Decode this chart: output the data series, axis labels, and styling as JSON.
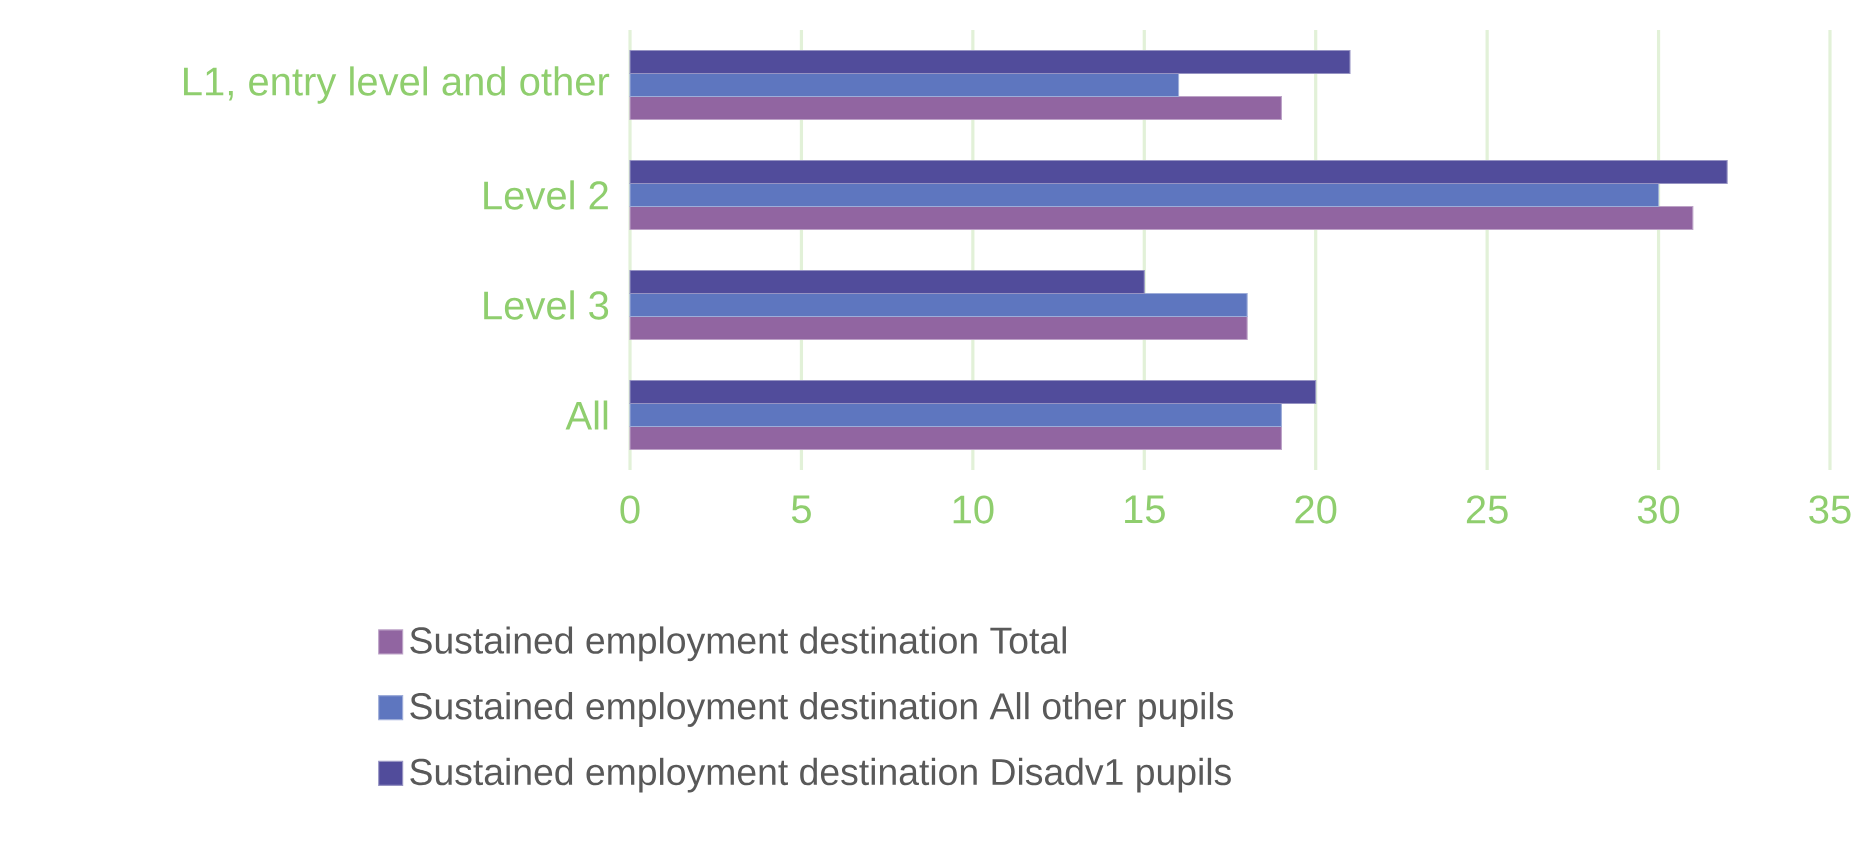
{
  "chart_data": {
    "type": "bar",
    "orientation": "horizontal",
    "categories": [
      "L1, entry level and other",
      "Level 2",
      "Level 3",
      "All"
    ],
    "series": [
      {
        "name": "Sustained employment destination Total",
        "color": "#9165a1",
        "values": [
          19,
          31,
          18,
          19
        ]
      },
      {
        "name": "Sustained employment destination All other pupils",
        "color": "#5e76bf",
        "values": [
          16,
          30,
          18,
          19
        ]
      },
      {
        "name": "Sustained employment destination Disadv1 pupils",
        "color": "#514c9b",
        "values": [
          21,
          32,
          15,
          20
        ]
      }
    ],
    "xlim": [
      0,
      35
    ],
    "xticks": [
      0,
      5,
      10,
      15,
      20,
      25,
      30,
      35
    ],
    "grid": "x",
    "legend": "bottom"
  }
}
